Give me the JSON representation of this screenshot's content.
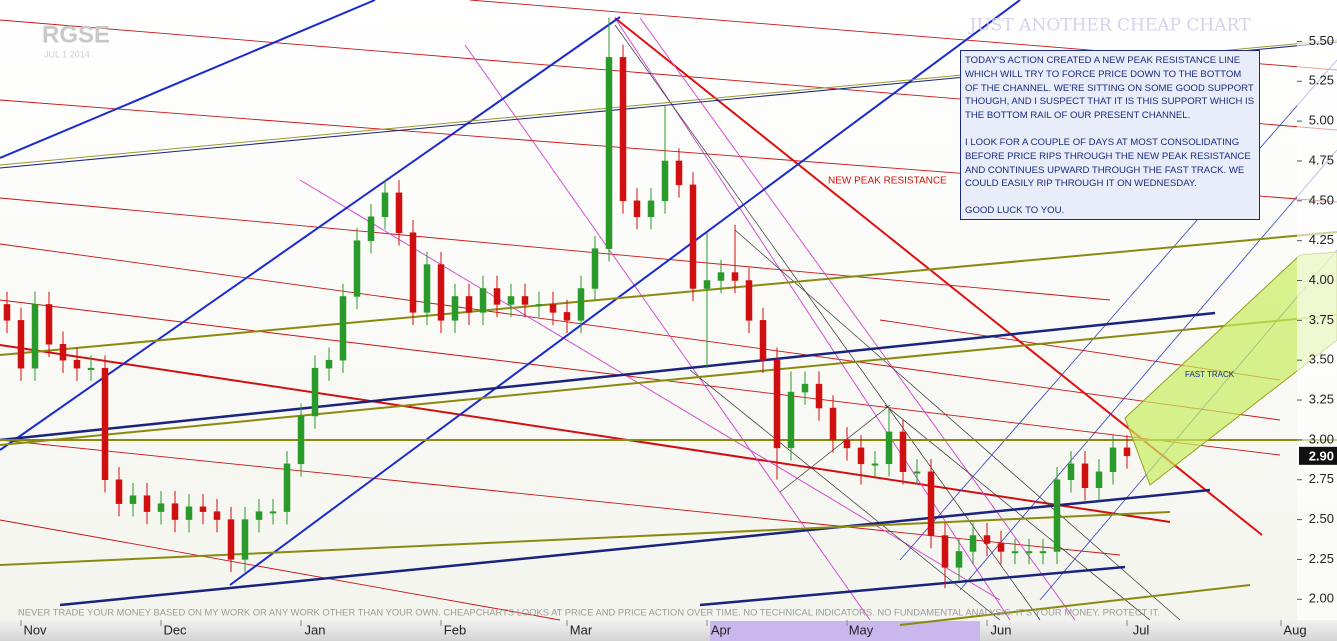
{
  "chart_data": {
    "type": "candlestick",
    "symbol": "RGSE",
    "date": "JUL 1 2014",
    "title": "JUST ANOTHER CHEAP CHART",
    "commentary": [
      "TODAY'S ACTION CREATED A NEW PEAK RESISTANCE LINE WHICH WILL TRY TO FORCE PRICE DOWN TO THE BOTTOM OF THE CHANNEL. WE'RE SITTING ON SOME GOOD SUPPORT THOUGH, AND I SUSPECT THAT IT IS THIS SUPPORT WHICH IS THE BOTTOM RAIL OF OUR PRESENT CHANNEL.",
      "I LOOK FOR A COUPLE OF DAYS AT MOST CONSOLIDATING BEFORE PRICE RIPS THROUGH THE NEW PEAK RESISTANCE AND CONTINUES UPWARD THROUGH THE FAST TRACK. WE COULD EASILY RIP THROUGH IT ON WEDNESDAY.",
      "GOOD LUCK TO YOU."
    ],
    "annotations": [
      "NEW PEAK RESISTANCE",
      "FAST TRACK"
    ],
    "disclaimer": "NEVER TRADE YOUR MONEY BASED ON MY WORK OR ANY WORK OTHER THAN YOUR OWN. CHEAPCHARTS LOOKS AT PRICE AND PRICE ACTION OVER TIME. NO TECHNICAL INDICATORS. NO FUNDAMENTAL ANALYSIS. IT'S YOUR MONEY. PROTECT IT.",
    "up_color": "#2a9a2a",
    "down_color": "#d01010",
    "last_price": {
      "value": 2.9,
      "label": "2.90"
    },
    "categories": [
      null,
      null,
      "Nov",
      null,
      null,
      null,
      null,
      null,
      null,
      null,
      null,
      null,
      "Dec",
      null,
      null,
      null,
      null,
      null,
      null,
      null,
      null,
      null,
      "Jan",
      null,
      null,
      null,
      null,
      null,
      null,
      null,
      null,
      null,
      "Feb",
      null,
      null,
      null,
      null,
      null,
      null,
      null,
      null,
      "Mar",
      null,
      null,
      null,
      null,
      null,
      null,
      null,
      null,
      null,
      "Apr",
      null,
      null,
      null,
      null,
      null,
      null,
      null,
      null,
      null,
      "May",
      null,
      null,
      null,
      null,
      null,
      null,
      null,
      null,
      null,
      "Jun",
      null,
      null,
      null,
      null,
      null,
      null,
      null,
      null,
      null,
      "Jul",
      null,
      null,
      null,
      null,
      null,
      null,
      null,
      null,
      null,
      null,
      "Aug"
    ],
    "open": [
      3.85,
      3.75,
      3.45,
      3.85,
      3.6,
      3.5,
      3.45,
      3.45,
      2.75,
      2.6,
      2.65,
      2.55,
      2.6,
      2.5,
      2.58,
      2.55,
      2.5,
      2.25,
      2.5,
      2.55,
      2.55,
      2.85,
      3.15,
      3.45,
      3.5,
      3.9,
      4.25,
      4.4,
      4.55,
      4.3,
      3.8,
      4.1,
      3.75,
      3.9,
      3.8,
      3.95,
      3.85,
      3.9,
      3.85,
      3.85,
      3.8,
      3.75,
      3.95,
      4.2,
      5.4,
      4.5,
      4.4,
      4.5,
      4.75,
      4.6,
      3.95,
      4.0,
      4.05,
      4.0,
      3.75,
      3.5,
      2.95,
      3.3,
      3.35,
      3.2,
      3.0,
      2.95,
      2.85,
      2.85,
      3.05,
      2.8,
      2.8,
      2.4,
      2.2,
      2.3,
      2.4,
      2.35,
      2.3,
      2.3,
      2.3,
      2.3,
      2.75,
      2.85,
      2.7,
      2.8,
      2.95,
      null,
      null,
      null,
      null,
      null,
      null,
      null,
      null,
      null,
      null,
      null,
      null
    ],
    "high": [
      3.93,
      3.83,
      3.93,
      3.93,
      3.68,
      3.58,
      3.53,
      3.53,
      2.83,
      2.73,
      2.73,
      2.68,
      2.68,
      2.66,
      2.66,
      2.63,
      2.58,
      2.58,
      2.63,
      2.63,
      2.93,
      3.23,
      3.53,
      3.58,
      3.98,
      4.33,
      4.48,
      4.63,
      4.63,
      4.38,
      4.18,
      4.18,
      3.98,
      3.98,
      4.03,
      4.03,
      3.98,
      3.98,
      3.93,
      3.93,
      3.88,
      4.03,
      4.28,
      5.65,
      5.48,
      4.58,
      4.58,
      5.1,
      4.83,
      4.68,
      4.3,
      4.13,
      4.35,
      4.08,
      3.83,
      3.58,
      3.43,
      3.43,
      3.43,
      3.28,
      3.08,
      3.03,
      2.93,
      3.2,
      3.13,
      2.88,
      2.88,
      2.48,
      2.38,
      2.48,
      2.48,
      2.43,
      2.38,
      2.38,
      2.38,
      2.83,
      2.93,
      2.93,
      2.88,
      3.03,
      3.03,
      null,
      null,
      null,
      null,
      null,
      null,
      null,
      null,
      null,
      null,
      null,
      null
    ],
    "low": [
      3.67,
      3.37,
      3.37,
      3.52,
      3.42,
      3.37,
      3.37,
      2.67,
      2.52,
      2.52,
      2.47,
      2.47,
      2.42,
      2.42,
      2.47,
      2.42,
      2.17,
      2.17,
      2.42,
      2.47,
      2.47,
      2.77,
      3.07,
      3.37,
      3.42,
      3.82,
      4.17,
      4.32,
      4.22,
      3.72,
      3.72,
      3.67,
      3.67,
      3.72,
      3.72,
      3.77,
      3.77,
      3.77,
      3.77,
      3.72,
      3.67,
      3.67,
      3.87,
      4.12,
      4.42,
      4.32,
      4.32,
      4.42,
      4.52,
      3.87,
      3.45,
      3.92,
      3.92,
      3.67,
      3.42,
      2.75,
      2.87,
      3.22,
      3.12,
      2.92,
      2.87,
      2.72,
      2.77,
      2.77,
      2.72,
      2.72,
      2.32,
      2.07,
      2.12,
      2.22,
      2.27,
      2.22,
      2.22,
      2.22,
      2.22,
      2.22,
      2.67,
      2.62,
      2.62,
      2.72,
      2.82,
      null,
      null,
      null,
      null,
      null,
      null,
      null,
      null,
      null,
      null,
      null,
      null
    ],
    "close": [
      3.75,
      3.45,
      3.85,
      3.6,
      3.5,
      3.45,
      3.45,
      2.75,
      2.6,
      2.65,
      2.55,
      2.6,
      2.5,
      2.58,
      2.55,
      2.5,
      2.25,
      2.5,
      2.55,
      2.55,
      2.85,
      3.15,
      3.45,
      3.5,
      3.9,
      4.25,
      4.4,
      4.55,
      4.3,
      3.8,
      4.1,
      3.75,
      3.9,
      3.8,
      3.95,
      3.85,
      3.9,
      3.85,
      3.85,
      3.8,
      3.75,
      3.95,
      4.2,
      5.4,
      4.5,
      4.4,
      4.5,
      4.75,
      4.6,
      3.95,
      4.0,
      4.05,
      4.0,
      3.75,
      3.5,
      2.95,
      3.3,
      3.35,
      3.2,
      3.0,
      2.95,
      2.85,
      2.85,
      3.05,
      2.8,
      2.8,
      2.4,
      2.2,
      2.3,
      2.4,
      2.35,
      2.3,
      2.3,
      2.3,
      2.3,
      2.75,
      2.85,
      2.7,
      2.8,
      2.95,
      2.9,
      null,
      null,
      null,
      null,
      null,
      null,
      null,
      null,
      null,
      null,
      null,
      null
    ],
    "ylim": [
      1.87,
      5.76
    ],
    "yticks": [
      {
        "value": 2,
        "label": "2.00"
      },
      {
        "value": 2.25,
        "label": "2.25"
      },
      {
        "value": 2.5,
        "label": "2.50"
      },
      {
        "value": 2.75,
        "label": "2.75"
      },
      {
        "value": 3,
        "label": "3.00"
      },
      {
        "value": 3.25,
        "label": "3.25"
      },
      {
        "value": 3.5,
        "label": "3.50"
      },
      {
        "value": 3.75,
        "label": "3.75"
      },
      {
        "value": 4,
        "label": "4.00"
      },
      {
        "value": 4.25,
        "label": "4.25"
      },
      {
        "value": 4.5,
        "label": "4.50"
      },
      {
        "value": 4.75,
        "label": "4.75"
      },
      {
        "value": 5,
        "label": "5.00"
      },
      {
        "value": 5.25,
        "label": "5.25"
      },
      {
        "value": 5.5,
        "label": "5.50"
      }
    ]
  }
}
